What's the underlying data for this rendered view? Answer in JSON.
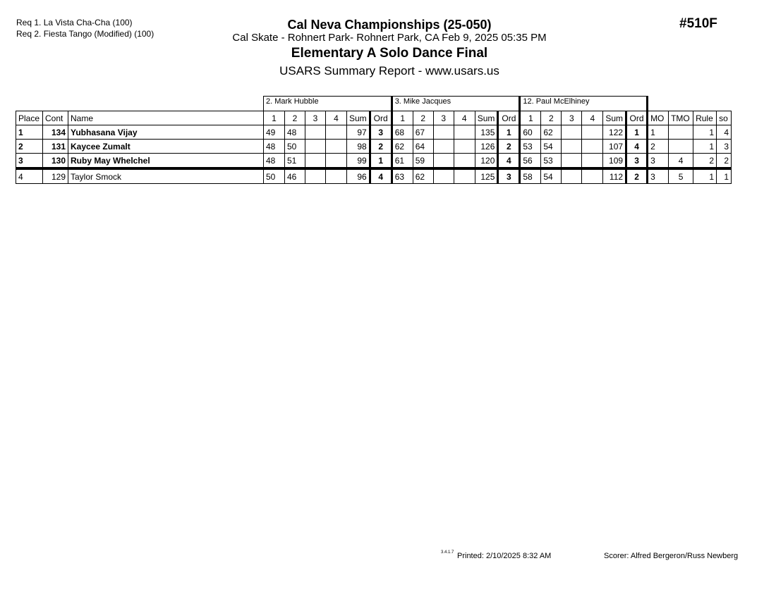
{
  "requirements": [
    "Req  1.  La Vista Cha-Cha (100)",
    "Req  2.  Fiesta Tango (Modified) (100)"
  ],
  "header": {
    "title": "Cal Neva Championships (25-050)",
    "location": "Cal Skate - Rohnert Park- Rohnert Park, CA  Feb 9, 2025  05:35 PM",
    "event": "Elementary A Solo Dance Final",
    "report": "USARS Summary Report - www.usars.us",
    "event_number": "#510F"
  },
  "judges": [
    "2.  Mark  Hubble",
    "3.  Mike Jacques",
    "12.  Paul  McElhiney"
  ],
  "columns": {
    "place": "Place",
    "cont": "Cont",
    "name": "Name",
    "marks": [
      "1",
      "2",
      "3",
      "4"
    ],
    "sum": "Sum",
    "ord": "Ord",
    "mo": "MO",
    "tmo": "TMO",
    "rule": "Rule",
    "so": "so"
  },
  "rows": [
    {
      "place": "1",
      "cont": "134",
      "name": "Yubhasana Vijay",
      "bold": true,
      "judges": [
        {
          "m": [
            "49",
            "48",
            "",
            ""
          ],
          "sum": "97",
          "ord": "3"
        },
        {
          "m": [
            "68",
            "67",
            "",
            ""
          ],
          "sum": "135",
          "ord": "1"
        },
        {
          "m": [
            "60",
            "62",
            "",
            ""
          ],
          "sum": "122",
          "ord": "1"
        }
      ],
      "mo": "1",
      "tmo": "",
      "rule": "1",
      "so": "4"
    },
    {
      "place": "2",
      "cont": "131",
      "name": "Kaycee Zumalt",
      "bold": true,
      "judges": [
        {
          "m": [
            "48",
            "50",
            "",
            ""
          ],
          "sum": "98",
          "ord": "2"
        },
        {
          "m": [
            "62",
            "64",
            "",
            ""
          ],
          "sum": "126",
          "ord": "2"
        },
        {
          "m": [
            "53",
            "54",
            "",
            ""
          ],
          "sum": "107",
          "ord": "4"
        }
      ],
      "mo": "2",
      "tmo": "",
      "rule": "1",
      "so": "3"
    },
    {
      "place": "3",
      "cont": "130",
      "name": "Ruby May Whelchel",
      "bold": true,
      "judges": [
        {
          "m": [
            "48",
            "51",
            "",
            ""
          ],
          "sum": "99",
          "ord": "1"
        },
        {
          "m": [
            "61",
            "59",
            "",
            ""
          ],
          "sum": "120",
          "ord": "4"
        },
        {
          "m": [
            "56",
            "53",
            "",
            ""
          ],
          "sum": "109",
          "ord": "3"
        }
      ],
      "mo": "3",
      "tmo": "4",
      "rule": "2",
      "so": "2"
    },
    {
      "place": "4",
      "cont": "129",
      "name": "Taylor Smock",
      "bold": false,
      "judges": [
        {
          "m": [
            "50",
            "46",
            "",
            ""
          ],
          "sum": "96",
          "ord": "4"
        },
        {
          "m": [
            "63",
            "62",
            "",
            ""
          ],
          "sum": "125",
          "ord": "3"
        },
        {
          "m": [
            "58",
            "54",
            "",
            ""
          ],
          "sum": "112",
          "ord": "2"
        }
      ],
      "mo": "3",
      "tmo": "5",
      "rule": "1",
      "so": "1"
    }
  ],
  "footer": {
    "version": "3.4.1.7",
    "printed": "Printed:  2/10/2025  8:32 AM",
    "scorer": "Scorer:   Alfred Bergeron/Russ Newberg"
  }
}
